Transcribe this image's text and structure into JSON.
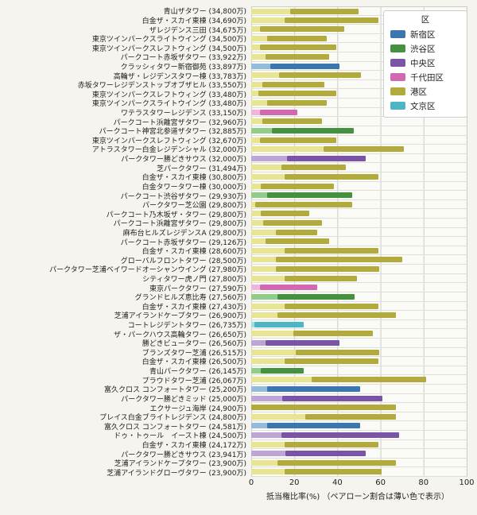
{
  "chart_data": {
    "type": "bar",
    "orientation": "horizontal",
    "stacked": true,
    "note": "light leading segment of each bar = pair-loan share",
    "xlabel": "抵当権比率(%) （ペアローン割合は薄い色で表示）",
    "xlim": [
      0,
      100
    ],
    "xticks": [
      0,
      20,
      40,
      60,
      80,
      100
    ],
    "grid": true,
    "legend": {
      "title": "区",
      "position": "top-right",
      "entries": [
        {
          "label": "新宿区",
          "color": "#3c76b0"
        },
        {
          "label": "渋谷区",
          "color": "#44913f"
        },
        {
          "label": "中央区",
          "color": "#7a55a7"
        },
        {
          "label": "千代田区",
          "color": "#d267b2"
        },
        {
          "label": "港区",
          "color": "#b2aa3d"
        },
        {
          "label": "文京区",
          "color": "#4db6c6"
        }
      ]
    },
    "ward_colors": {
      "新宿区": {
        "dark": "#3c76b0",
        "light": "#93bcdb"
      },
      "渋谷区": {
        "dark": "#44913f",
        "light": "#90cd8b"
      },
      "中央区": {
        "dark": "#7a55a7",
        "light": "#bda6d6"
      },
      "千代田区": {
        "dark": "#d267b2",
        "light": "#f0b5dc"
      },
      "港区": {
        "dark": "#b2aa3d",
        "light": "#e7e494"
      },
      "文京区": {
        "dark": "#4db6c6",
        "light": "#a6dde4"
      }
    },
    "rows": [
      {
        "label": "青山ザタワー (34,800万)",
        "ward": "港区",
        "pair_pct": 18,
        "total_pct": 50
      },
      {
        "label": "白金ザ・スカイ東棟 (34,690万)",
        "ward": "港区",
        "pair_pct": 15.5,
        "total_pct": 59
      },
      {
        "label": "ザレジデンス三田 (34,675万)",
        "ward": "港区",
        "pair_pct": 4,
        "total_pct": 43
      },
      {
        "label": "東京ツインパークスライトウイング (34,500万)",
        "ward": "港区",
        "pair_pct": 7.5,
        "total_pct": 35
      },
      {
        "label": "東京ツインパークスレフトウィング (34,500万)",
        "ward": "港区",
        "pair_pct": 4,
        "total_pct": 39.5
      },
      {
        "label": "パークコート赤坂ザタワー (33,922万)",
        "ward": "港区",
        "pair_pct": 6.5,
        "total_pct": 36
      },
      {
        "label": "クラッシィタワー新宿御苑 (33,897万)",
        "ward": "新宿区",
        "pair_pct": 9,
        "total_pct": 41
      },
      {
        "label": "高輪ザ・レジデンスタワー棟 (33,783万)",
        "ward": "港区",
        "pair_pct": 13,
        "total_pct": 51
      },
      {
        "label": "赤坂タワーレジデンストップオブザヒル (33,550万)",
        "ward": "港区",
        "pair_pct": 5,
        "total_pct": 34
      },
      {
        "label": "東京ツインパークスレフトウィング (33,480万)",
        "ward": "港区",
        "pair_pct": 3.5,
        "total_pct": 39.5
      },
      {
        "label": "東京ツインパークスライトウイング (33,480万)",
        "ward": "港区",
        "pair_pct": 7.5,
        "total_pct": 35
      },
      {
        "label": "ワテラスタワーレジデンス (33,150万)",
        "ward": "千代田区",
        "pair_pct": 4,
        "total_pct": 21.5
      },
      {
        "label": "パークコート浜離宮ザタワー (32,960万)",
        "ward": "港区",
        "pair_pct": 5,
        "total_pct": 33
      },
      {
        "label": "パークコート神宮北参道ザタワー (32,885万)",
        "ward": "渋谷区",
        "pair_pct": 9.5,
        "total_pct": 47.5
      },
      {
        "label": "東京ツインパークスレフトウィング (32,670万)",
        "ward": "港区",
        "pair_pct": 4,
        "total_pct": 39.5
      },
      {
        "label": "アトラスタワー白金レジデンシャル (32,000万)",
        "ward": "港区",
        "pair_pct": 33.5,
        "total_pct": 71
      },
      {
        "label": "パークタワー勝どきサウス (32,000万)",
        "ward": "中央区",
        "pair_pct": 16.5,
        "total_pct": 53
      },
      {
        "label": "芝パークタワー (31,494万)",
        "ward": "港区",
        "pair_pct": 14,
        "total_pct": 44
      },
      {
        "label": "白金ザ・スカイ東棟 (30,800万)",
        "ward": "港区",
        "pair_pct": 15.5,
        "total_pct": 59
      },
      {
        "label": "白金タワータワー棟 (30,000万)",
        "ward": "港区",
        "pair_pct": 4.5,
        "total_pct": 38.5
      },
      {
        "label": "パークコート渋谷ザタワー (29,930万)",
        "ward": "渋谷区",
        "pair_pct": 7.5,
        "total_pct": 47
      },
      {
        "label": "パークタワー芝公園 (29,800万)",
        "ward": "港区",
        "pair_pct": 2,
        "total_pct": 47
      },
      {
        "label": "パークコート乃木坂ザ・タワー (29,800万)",
        "ward": "港区",
        "pair_pct": 4.5,
        "total_pct": 27
      },
      {
        "label": "パークコート浜離宮ザタワー (29,800万)",
        "ward": "港区",
        "pair_pct": 5.5,
        "total_pct": 33
      },
      {
        "label": "麻布台ヒルズレジデンスA (29,800万)",
        "ward": "港区",
        "pair_pct": 11.5,
        "total_pct": 30.5
      },
      {
        "label": "パークコート赤坂ザタワー (29,126万)",
        "ward": "港区",
        "pair_pct": 6.5,
        "total_pct": 36
      },
      {
        "label": "白金ザ・スカイ東棟 (28,600万)",
        "ward": "港区",
        "pair_pct": 15.5,
        "total_pct": 59
      },
      {
        "label": "グローバルフロントタワー (28,500万)",
        "ward": "港区",
        "pair_pct": 11.5,
        "total_pct": 70
      },
      {
        "label": "パークタワー芝浦ベイワードオーシャンウイング (27,980万)",
        "ward": "港区",
        "pair_pct": 11.5,
        "total_pct": 59.5
      },
      {
        "label": "シティタワー虎ノ門 (27,800万)",
        "ward": "港区",
        "pair_pct": 15.5,
        "total_pct": 49
      },
      {
        "label": "東京パークタワー (27,590万)",
        "ward": "千代田区",
        "pair_pct": 4,
        "total_pct": 30.5
      },
      {
        "label": "グランドヒルズ恵比寿 (27,560万)",
        "ward": "渋谷区",
        "pair_pct": 12,
        "total_pct": 48
      },
      {
        "label": "白金ザ・スカイ東棟 (27,430万)",
        "ward": "港区",
        "pair_pct": 15.5,
        "total_pct": 59
      },
      {
        "label": "芝浦アイランドケープタワー (26,900万)",
        "ward": "港区",
        "pair_pct": 12,
        "total_pct": 67
      },
      {
        "label": "コートレジデントタワー (26,735万)",
        "ward": "文京区",
        "pair_pct": 1.5,
        "total_pct": 24.5
      },
      {
        "label": "ザ・パークハウス高輪タワー (26,650万)",
        "ward": "港区",
        "pair_pct": 19.5,
        "total_pct": 56.5
      },
      {
        "label": "勝どきビュータワー (26,560万)",
        "ward": "中央区",
        "pair_pct": 6.5,
        "total_pct": 41
      },
      {
        "label": "ブランズタワー芝浦 (26,515万)",
        "ward": "港区",
        "pair_pct": 20.5,
        "total_pct": 59.5
      },
      {
        "label": "白金ザ・スカイ東棟 (26,500万)",
        "ward": "港区",
        "pair_pct": 15.5,
        "total_pct": 59
      },
      {
        "label": "青山パークタワー (26,145万)",
        "ward": "渋谷区",
        "pair_pct": 4.5,
        "total_pct": 24.5
      },
      {
        "label": "プラウドタワー芝浦 (26,067万)",
        "ward": "港区",
        "pair_pct": 28,
        "total_pct": 81
      },
      {
        "label": "富久クロス コンフォートタワー (25,200万)",
        "ward": "新宿区",
        "pair_pct": 7.5,
        "total_pct": 50.5
      },
      {
        "label": "パークタワー勝どきミッド (25,000万)",
        "ward": "中央区",
        "pair_pct": 14.5,
        "total_pct": 61
      },
      {
        "label": "エクサージュ海岸 (24,900万)",
        "ward": "港区",
        "pair_pct": 0,
        "total_pct": 67
      },
      {
        "label": "プレイス白金ブライトレジデンス (24,800万)",
        "ward": "港区",
        "pair_pct": 25,
        "total_pct": 67
      },
      {
        "label": "富久クロス コンフォートタワー (24,581万)",
        "ward": "新宿区",
        "pair_pct": 7.5,
        "total_pct": 50.5
      },
      {
        "label": "ドゥ・トゥール　イースト棟 (24,500万)",
        "ward": "中央区",
        "pair_pct": 14,
        "total_pct": 68.5
      },
      {
        "label": "白金ザ・スカイ東棟 (24,172万)",
        "ward": "港区",
        "pair_pct": 15.5,
        "total_pct": 59
      },
      {
        "label": "パークタワー勝どきサウス (23,941万)",
        "ward": "中央区",
        "pair_pct": 16,
        "total_pct": 53
      },
      {
        "label": "芝浦アイランドケープタワー (23,900万)",
        "ward": "港区",
        "pair_pct": 12,
        "total_pct": 67
      },
      {
        "label": "芝浦アイランドグローヴタワー (23,900万)",
        "ward": "港区",
        "pair_pct": 15.5,
        "total_pct": 60.5
      }
    ]
  }
}
